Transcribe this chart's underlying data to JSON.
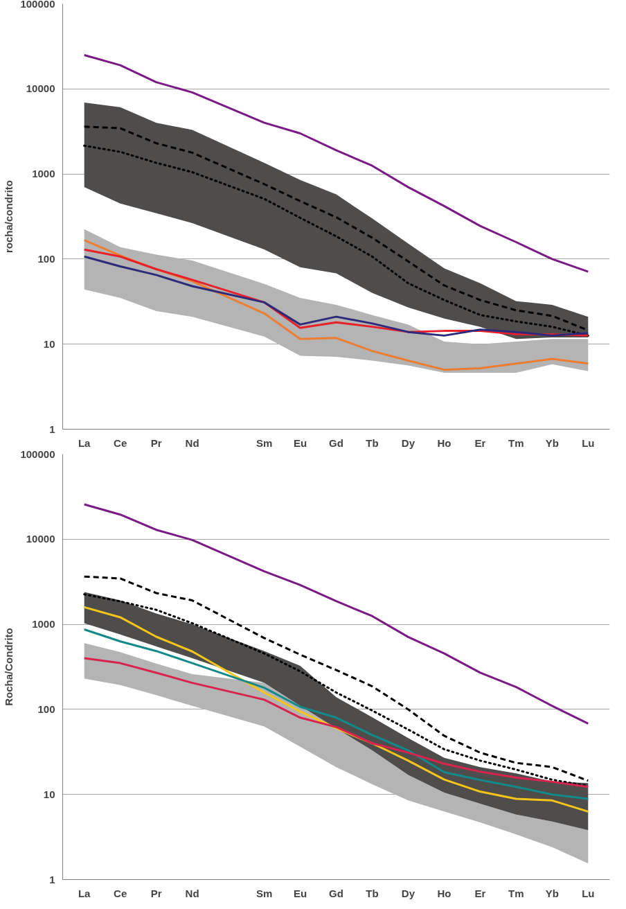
{
  "chart_data": [
    {
      "type": "line",
      "ylabel": "rocha/condrito",
      "categories": [
        "La",
        "Ce",
        "Pr",
        "Nd",
        null,
        "Sm",
        "Eu",
        "Gd",
        "Tb",
        "Dy",
        "Ho",
        "Er",
        "Tm",
        "Yb",
        "Lu"
      ],
      "log": true,
      "ylim": [
        1,
        100000
      ],
      "yticks": [
        1,
        10,
        100,
        1000,
        10000,
        100000
      ],
      "grid": "y",
      "series": [
        {
          "color": "#000000",
          "line_style": "dashed",
          "values": [
            3600,
            3450,
            2300,
            1780,
            null,
            760,
            480,
            310,
            178,
            94,
            49,
            33,
            25,
            21.5,
            14.5
          ]
        },
        {
          "color": "#000000",
          "line_style": "dotted",
          "values": [
            2150,
            1820,
            1350,
            1050,
            null,
            510,
            305,
            185,
            107,
            52,
            33,
            22,
            18.5,
            16,
            12.6
          ],
          "upper": [
            6900,
            6100,
            4000,
            3300,
            null,
            1350,
            850,
            575,
            300,
            152,
            78,
            52,
            32,
            29,
            21
          ],
          "lower": [
            700,
            450,
            345,
            265,
            null,
            130,
            80,
            68,
            40,
            27,
            20,
            16,
            11.5,
            12,
            12
          ]
        },
        {
          "color": "#7b1a86",
          "values": [
            25000,
            19000,
            12000,
            9100,
            null,
            4000,
            3000,
            1900,
            1250,
            700,
            420,
            245,
            158,
            100,
            71
          ]
        },
        {
          "color": "#ed7d31",
          "values": [
            167,
            110,
            76,
            55,
            null,
            23,
            11.5,
            11.8,
            8.3,
            6.4,
            5.0,
            5.2,
            5.9,
            6.7,
            5.9
          ]
        },
        {
          "color": "#e8202a",
          "values": [
            129,
            107,
            76,
            57,
            null,
            31,
            15.5,
            18,
            16,
            13.9,
            14.3,
            14.3,
            13.1,
            13,
            12.6
          ],
          "upper": [
            225,
            138,
            113,
            96,
            null,
            51,
            35,
            29,
            22,
            17,
            10.7,
            10,
            10.7,
            11.5,
            11.5
          ],
          "lower": [
            44,
            35,
            24.5,
            21,
            null,
            12.3,
            7.3,
            7.1,
            6.4,
            5.6,
            4.6,
            4.6,
            4.6,
            5.8,
            4.8
          ]
        },
        {
          "color": "#2e2a7a",
          "values": [
            107,
            82,
            65,
            48,
            null,
            31,
            17,
            21,
            17.5,
            13.9,
            12.6,
            14.8,
            13.9,
            12.6,
            13.5
          ]
        }
      ]
    },
    {
      "type": "line",
      "ylabel": "Rocha/Condrito",
      "categories": [
        "La",
        "Ce",
        "Pr",
        "Nd",
        null,
        "Sm",
        "Eu",
        "Gd",
        "Tb",
        "Dy",
        "Ho",
        "Er",
        "Tm",
        "Yb",
        "Lu"
      ],
      "log": true,
      "ylim": [
        1,
        100000
      ],
      "yticks": [
        1,
        10,
        100,
        1000,
        10000,
        100000
      ],
      "grid": "y",
      "series": [
        {
          "color": "#000000",
          "line_style": "dashed",
          "values": [
            3640,
            3460,
            2330,
            1910,
            null,
            690,
            440,
            290,
            187,
            100,
            49,
            31,
            23.5,
            21,
            14.5
          ]
        },
        {
          "color": "#000000",
          "line_style": "dotted",
          "values": [
            2250,
            1860,
            1480,
            1030,
            null,
            455,
            280,
            158,
            97,
            58,
            34,
            25,
            19.6,
            14.9,
            12.6
          ]
        },
        {
          "color": "#7b1a86",
          "values": [
            25700,
            19500,
            12900,
            9800,
            null,
            4200,
            2900,
            1870,
            1250,
            710,
            455,
            270,
            183,
            110,
            68
          ]
        },
        {
          "color": "#f5c518",
          "values": [
            1590,
            1210,
            715,
            480,
            null,
            158,
            94,
            60,
            40,
            25,
            15,
            10.8,
            8.9,
            8.5,
            6.3
          ],
          "upper": [
            2400,
            1910,
            1340,
            1000,
            null,
            485,
            325,
            139,
            81,
            46,
            27,
            21,
            17.7,
            14.2,
            13.6
          ],
          "lower": [
            1030,
            760,
            550,
            400,
            null,
            205,
            110,
            60,
            33,
            17,
            10.5,
            7.8,
            5.8,
            4.8,
            3.8
          ]
        },
        {
          "color": "#138a8a",
          "values": [
            870,
            630,
            485,
            350,
            null,
            180,
            107,
            80,
            50,
            33,
            18.3,
            14.8,
            12.3,
            10,
            8.9
          ]
        },
        {
          "color": "#d8234f",
          "values": [
            400,
            350,
            270,
            205,
            null,
            130,
            80,
            62,
            40,
            31,
            23,
            18.5,
            15.8,
            14.1,
            12.3
          ],
          "upper": [
            600,
            470,
            345,
            260,
            null,
            205,
            110,
            60,
            33,
            17,
            10.5,
            7.8,
            5.8,
            4.8,
            3.8
          ],
          "lower": [
            230,
            193,
            147,
            110,
            null,
            63,
            36.5,
            21,
            13.2,
            8.5,
            6.3,
            4.7,
            3.4,
            2.4,
            1.55
          ]
        }
      ]
    }
  ]
}
